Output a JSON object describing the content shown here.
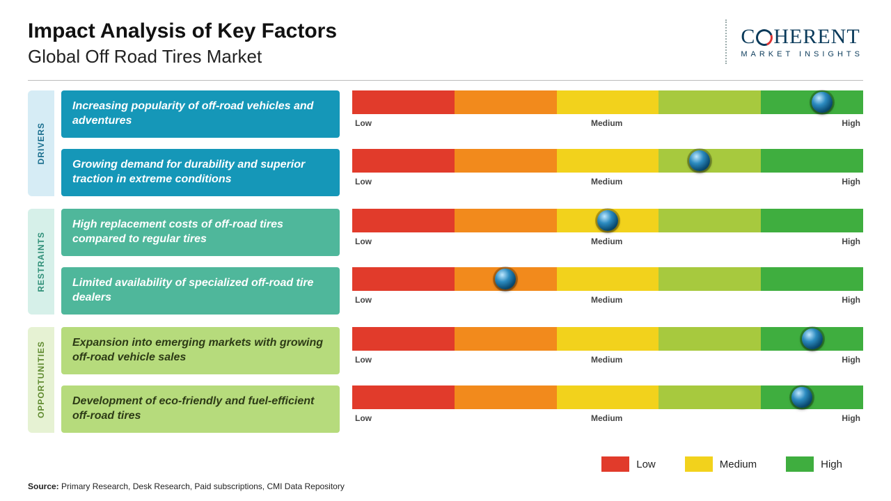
{
  "title": "Impact Analysis of Key Factors",
  "subtitle": "Global Off Road Tires Market",
  "logo": {
    "main": "COHERENT",
    "sub": "MARKET INSIGHTS",
    "text_color": "#0a3a5a"
  },
  "scale_labels": {
    "low": "Low",
    "medium": "Medium",
    "high": "High"
  },
  "segment_colors": [
    "#e13b2b",
    "#f28a1c",
    "#f2d21c",
    "#a7c93e",
    "#3fae3f"
  ],
  "categories": [
    {
      "name": "DRIVERS",
      "tab_bg": "#d6ecf5",
      "tab_text": "#1a6e8e",
      "item_bg": "#1597b8",
      "item_text": "#ffffff",
      "items": [
        {
          "label": "Increasing popularity of off-road vehicles and adventures",
          "value_pct": 92
        },
        {
          "label": "Growing demand for durability and superior traction in extreme conditions",
          "value_pct": 68
        }
      ]
    },
    {
      "name": "RESTRAINTS",
      "tab_bg": "#d6f0e9",
      "tab_text": "#2f8f78",
      "item_bg": "#4fb79b",
      "item_text": "#ffffff",
      "items": [
        {
          "label": "High replacement costs of off-road tires compared to regular tires",
          "value_pct": 50
        },
        {
          "label": "Limited availability of specialized off-road tire dealers",
          "value_pct": 30
        }
      ]
    },
    {
      "name": "OPPORTUNITIES",
      "tab_bg": "#e6f2d3",
      "tab_text": "#5f8a2f",
      "item_bg": "#b6db7c",
      "item_text": "#2d3b16",
      "items": [
        {
          "label": "Expansion into emerging markets with growing off-road vehicle sales",
          "value_pct": 90
        },
        {
          "label": "Development of eco-friendly and fuel-efficient off-road tires",
          "value_pct": 88
        }
      ]
    }
  ],
  "legend": [
    {
      "label": "Low",
      "color": "#e13b2b"
    },
    {
      "label": "Medium",
      "color": "#f2d21c"
    },
    {
      "label": "High",
      "color": "#3fae3f"
    }
  ],
  "source_label": "Source:",
  "source_text": "Primary Research, Desk Research, Paid subscriptions, CMI Data Repository"
}
